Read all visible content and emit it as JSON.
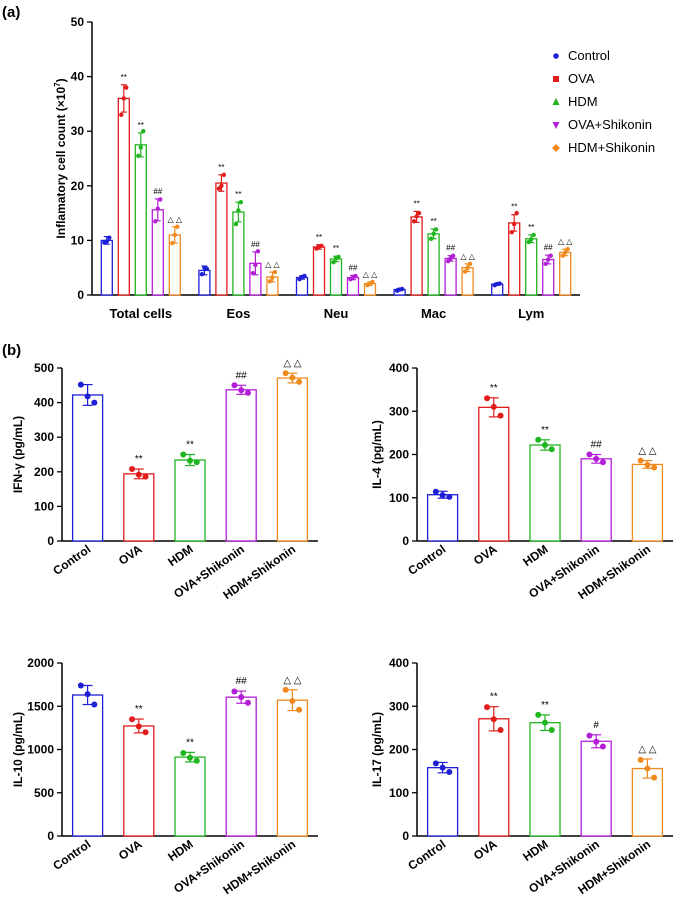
{
  "panel_labels": {
    "a": "(a)",
    "b": "(b)"
  },
  "colors": {
    "Control": "#1f1fd6",
    "OVA": "#e21b1b",
    "HDM": "#1fb51f",
    "OVA+Shikonin": "#b31fd6",
    "HDM+Shikonin": "#f08a1f"
  },
  "chart_data": [
    {
      "id": "a",
      "type": "bar",
      "ylabel": "Inflamatory cell count (×10",
      "ylabel_sup": "7",
      "ylabel_end": ")",
      "ylim": [
        0,
        50
      ],
      "yticks": [
        0,
        10,
        20,
        30,
        40,
        50
      ],
      "categories": [
        "Total cells",
        "Eos",
        "Neu",
        "Mac",
        "Lym"
      ],
      "legend_position": "top-right",
      "series": [
        {
          "name": "Control",
          "values": [
            10,
            4.5,
            3.2,
            1.0,
            2.0
          ],
          "errors": [
            0.7,
            0.8,
            0.3,
            0.2,
            0.2
          ],
          "points": [
            [
              9.6,
              10.5,
              9.8
            ],
            [
              3.8,
              4.8,
              5.0
            ],
            [
              2.9,
              3.5,
              3.3
            ],
            [
              0.8,
              1.1,
              1.0
            ],
            [
              1.8,
              2.1,
              2.0
            ]
          ],
          "sig": [
            "",
            "",
            "",
            "",
            ""
          ]
        },
        {
          "name": "OVA",
          "values": [
            36,
            20.5,
            8.8,
            14.3,
            13.2
          ],
          "errors": [
            2.5,
            1.5,
            0.4,
            1.0,
            1.5
          ],
          "points": [
            [
              33,
              38,
              36
            ],
            [
              19.5,
              22,
              20
            ],
            [
              8.5,
              9.0,
              8.9
            ],
            [
              13.5,
              15,
              14.4
            ],
            [
              11.5,
              15,
              13
            ]
          ],
          "sig": [
            "**",
            "**",
            "**",
            "**",
            "**"
          ]
        },
        {
          "name": "HDM",
          "values": [
            27.5,
            15.2,
            6.6,
            11.2,
            10.3
          ],
          "errors": [
            2.2,
            1.8,
            0.5,
            0.9,
            0.7
          ],
          "points": [
            [
              25.5,
              30,
              27
            ],
            [
              13,
              17,
              15.5
            ],
            [
              6.0,
              7.0,
              6.7
            ],
            [
              10.3,
              12,
              11.2
            ],
            [
              9.7,
              11,
              10.2
            ]
          ],
          "sig": [
            "**",
            "**",
            "**",
            "**",
            "**"
          ]
        },
        {
          "name": "OVA+Shikonin",
          "values": [
            15.6,
            5.8,
            3.2,
            6.7,
            6.5
          ],
          "errors": [
            2.0,
            2.1,
            0.4,
            0.5,
            0.8
          ],
          "points": [
            [
              13.5,
              17.5,
              15.8
            ],
            [
              4.0,
              8.0,
              5.5
            ],
            [
              2.9,
              3.5,
              3.2
            ],
            [
              6.2,
              7.2,
              6.7
            ],
            [
              5.7,
              7.2,
              6.5
            ]
          ],
          "sig": [
            "##",
            "##",
            "##",
            "##",
            "##"
          ]
        },
        {
          "name": "HDM+Shikonin",
          "values": [
            11.0,
            3.3,
            2.1,
            5.0,
            7.8
          ],
          "errors": [
            1.5,
            0.9,
            0.3,
            0.7,
            0.6
          ],
          "points": [
            [
              9.5,
              12.5,
              11
            ],
            [
              2.5,
              4.2,
              3.2
            ],
            [
              1.8,
              2.4,
              2.1
            ],
            [
              4.3,
              5.7,
              5.0
            ],
            [
              7.2,
              8.4,
              7.8
            ]
          ],
          "sig": [
            "△ △",
            "△ △",
            "△ △",
            "△ △",
            "△ △"
          ]
        }
      ]
    },
    {
      "id": "ifng",
      "type": "bar",
      "ylabel": "IFN-γ (pg/mL)",
      "ylim": [
        0,
        500
      ],
      "yticks": [
        0,
        100,
        200,
        300,
        400,
        500
      ],
      "categories": [
        "Control",
        "OVA",
        "HDM",
        "OVA+Shikonin",
        "HDM+Shikonin"
      ],
      "values": [
        422,
        194,
        234,
        437,
        471
      ],
      "errors": [
        30,
        14,
        16,
        13,
        14
      ],
      "points": [
        [
          452,
          400,
          418
        ],
        [
          208,
          186,
          192
        ],
        [
          250,
          228,
          232
        ],
        [
          450,
          428,
          436
        ],
        [
          485,
          460,
          472
        ]
      ],
      "sig": [
        "",
        "**",
        "**",
        "##",
        "△ △"
      ]
    },
    {
      "id": "il4",
      "type": "bar",
      "ylabel": "IL-4 (pg/mL)",
      "ylim": [
        0,
        400
      ],
      "yticks": [
        0,
        100,
        200,
        300,
        400
      ],
      "categories": [
        "Control",
        "OVA",
        "HDM",
        "OVA+Shikonin",
        "HDM+Shikonin"
      ],
      "values": [
        107,
        309,
        222,
        190,
        177
      ],
      "errors": [
        8,
        22,
        12,
        10,
        9
      ],
      "points": [
        [
          114,
          102,
          106
        ],
        [
          330,
          290,
          310
        ],
        [
          234,
          212,
          222
        ],
        [
          200,
          182,
          190
        ],
        [
          186,
          170,
          176
        ]
      ],
      "sig": [
        "",
        "**",
        "**",
        "##",
        "△ △"
      ]
    },
    {
      "id": "il10",
      "type": "bar",
      "ylabel": "IL-10 (pg/mL)",
      "ylim": [
        0,
        2000
      ],
      "yticks": [
        0,
        500,
        1000,
        1500,
        2000
      ],
      "categories": [
        "Control",
        "OVA",
        "HDM",
        "OVA+Shikonin",
        "HDM+Shikonin"
      ],
      "values": [
        1630,
        1272,
        912,
        1605,
        1570
      ],
      "errors": [
        110,
        80,
        55,
        70,
        120
      ],
      "points": [
        [
          1740,
          1520,
          1640
        ],
        [
          1350,
          1200,
          1268
        ],
        [
          960,
          870,
          905
        ],
        [
          1670,
          1540,
          1605
        ],
        [
          1690,
          1460,
          1560
        ]
      ],
      "sig": [
        "",
        "**",
        "**",
        "##",
        "△ △"
      ]
    },
    {
      "id": "il17",
      "type": "bar",
      "ylabel": "IL-17 (pg/mL)",
      "ylim": [
        0,
        400
      ],
      "yticks": [
        0,
        100,
        200,
        300,
        400
      ],
      "categories": [
        "Control",
        "OVA",
        "HDM",
        "OVA+Shikonin",
        "HDM+Shikonin"
      ],
      "values": [
        158,
        271,
        262,
        219,
        156
      ],
      "errors": [
        12,
        28,
        18,
        15,
        22
      ],
      "points": [
        [
          168,
          148,
          158
        ],
        [
          298,
          245,
          270
        ],
        [
          280,
          245,
          262
        ],
        [
          232,
          207,
          218
        ],
        [
          176,
          135,
          156
        ]
      ],
      "sig": [
        "",
        "**",
        "**",
        "#",
        "△ △"
      ]
    }
  ]
}
